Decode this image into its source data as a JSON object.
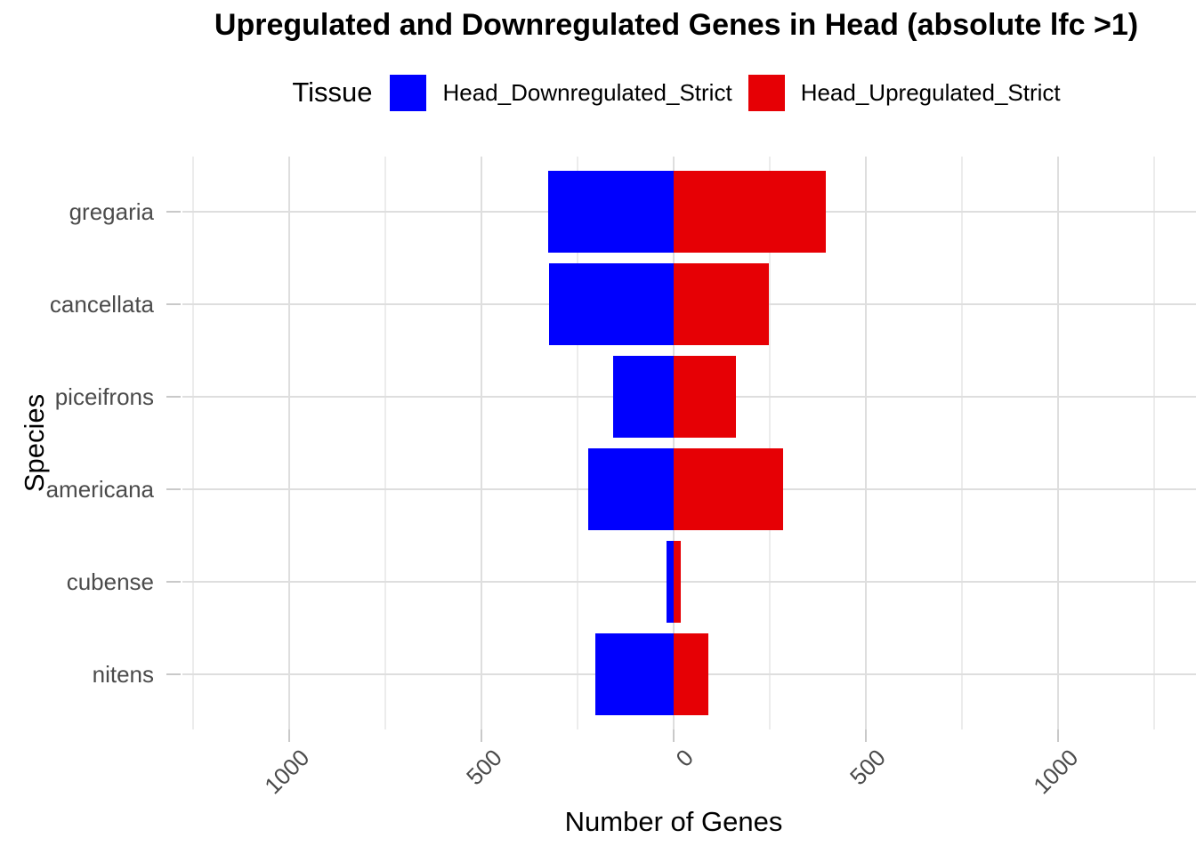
{
  "title": "Upregulated and Downregulated Genes in Head (absolute lfc >1)",
  "legend": {
    "title": "Tissue",
    "position": "top",
    "items": [
      {
        "label": "Head_Downregulated_Strict",
        "color": "#0000FE"
      },
      {
        "label": "Head_Upregulated_Strict",
        "color": "#E60005"
      }
    ]
  },
  "axes": {
    "x_title": "Number of Genes",
    "y_title": "Species"
  },
  "chart_data": {
    "type": "bar",
    "orientation": "horizontal-diverging",
    "title": "Upregulated and Downregulated Genes in Head (absolute lfc >1)",
    "xlabel": "Number of Genes",
    "ylabel": "Species",
    "grid": true,
    "legend_position": "top",
    "categories": [
      "gregaria",
      "cancellata",
      "piceifrons",
      "americana",
      "cubense",
      "nitens"
    ],
    "series": [
      {
        "name": "Head_Downregulated_Strict",
        "color": "#0000FE",
        "direction": "negative",
        "values": [
          326,
          324,
          157,
          222,
          18,
          204
        ]
      },
      {
        "name": "Head_Upregulated_Strict",
        "color": "#E60005",
        "direction": "positive",
        "values": [
          397,
          249,
          162,
          285,
          18,
          90
        ]
      }
    ],
    "xlim": [
      -1278,
      1360
    ],
    "x_tick_values": [
      -1000,
      -500,
      0,
      500,
      1000
    ],
    "x_tick_labels": [
      "1000",
      "500",
      "0",
      "500",
      "1000"
    ],
    "x_minor_tick_values": [
      -1250,
      -750,
      -250,
      250,
      750,
      1250
    ]
  }
}
